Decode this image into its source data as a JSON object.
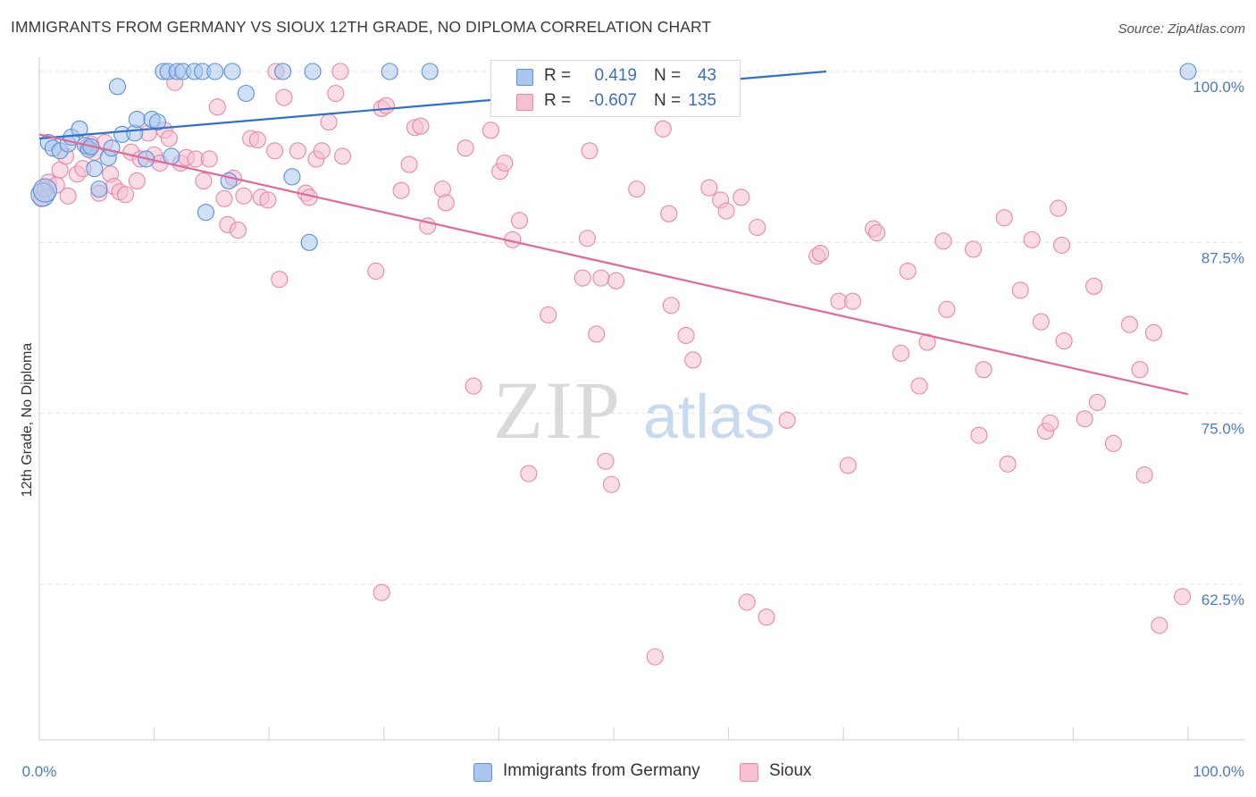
{
  "title": "IMMIGRANTS FROM GERMANY VS SIOUX 12TH GRADE, NO DIPLOMA CORRELATION CHART",
  "source": "Source: ZipAtlas.com",
  "watermark": {
    "zip": "ZIP",
    "atlas": "atlas"
  },
  "colors": {
    "blue_fill": "#a9c6ee",
    "blue_stroke": "#5b8fd6",
    "blue_line": "#2e6fcf",
    "pink_fill": "#f6c0d2",
    "pink_stroke": "#e887a7",
    "pink_line": "#e0689a",
    "tick_text": "#4a7bc4",
    "grid": "#e3e3e3"
  },
  "legend_top": [
    {
      "r_label": "R =",
      "r_value": "0.419",
      "n_label": "N =",
      "n_value": "43"
    },
    {
      "r_label": "R =",
      "r_value": "-0.607",
      "n_label": "N =",
      "n_value": "135"
    }
  ],
  "legend_bottom": [
    "Immigrants from Germany",
    "Sioux"
  ],
  "chart_data": {
    "type": "scatter",
    "title": "IMMIGRANTS FROM GERMANY VS SIOUX 12TH GRADE, NO DIPLOMA CORRELATION CHART",
    "xlabel": "",
    "ylabel": "12th Grade, No Diploma",
    "xlim": [
      0,
      100
    ],
    "ylim": [
      52.5,
      102
    ],
    "x_tick_labels": [
      "0.0%",
      "100.0%"
    ],
    "y_ticks": [
      62.5,
      75.0,
      87.5,
      100.0
    ],
    "y_tick_labels": [
      "62.5%",
      "75.0%",
      "87.5%",
      "100.0%"
    ],
    "grid": true,
    "legend_position": "top-center",
    "series": [
      {
        "name": "Immigrants from Germany",
        "color": "#a9c6ee",
        "r": 0.419,
        "n": 43,
        "trend": {
          "x": [
            0,
            68.5
          ],
          "y": [
            95.1,
            100.0
          ]
        },
        "points": [
          [
            0.3,
            91.0
          ],
          [
            0.5,
            91.3
          ],
          [
            0.8,
            94.8
          ],
          [
            1.2,
            94.4
          ],
          [
            1.8,
            94.2
          ],
          [
            2.5,
            94.7
          ],
          [
            2.8,
            95.2
          ],
          [
            3.5,
            95.8
          ],
          [
            4.0,
            94.6
          ],
          [
            4.3,
            94.3
          ],
          [
            4.5,
            94.5
          ],
          [
            4.8,
            92.9
          ],
          [
            5.2,
            91.4
          ],
          [
            6.0,
            93.7
          ],
          [
            6.3,
            94.4
          ],
          [
            6.8,
            98.9
          ],
          [
            7.2,
            95.4
          ],
          [
            8.3,
            95.5
          ],
          [
            8.5,
            96.5
          ],
          [
            9.3,
            93.6
          ],
          [
            9.8,
            96.5
          ],
          [
            10.3,
            96.3
          ],
          [
            10.8,
            100.0
          ],
          [
            11.2,
            100.0
          ],
          [
            11.5,
            93.8
          ],
          [
            12.0,
            100.0
          ],
          [
            12.5,
            100.0
          ],
          [
            13.5,
            100.0
          ],
          [
            14.2,
            100.0
          ],
          [
            14.5,
            89.7
          ],
          [
            15.3,
            100.0
          ],
          [
            16.5,
            92.0
          ],
          [
            16.8,
            100.0
          ],
          [
            18.0,
            98.4
          ],
          [
            21.2,
            100.0
          ],
          [
            22.0,
            92.3
          ],
          [
            23.5,
            87.5
          ],
          [
            23.8,
            100.0
          ],
          [
            30.5,
            100.0
          ],
          [
            34.0,
            100.0
          ],
          [
            40.5,
            100.0
          ],
          [
            48.5,
            98.2
          ],
          [
            100.0,
            100.0
          ]
        ]
      },
      {
        "name": "Sioux",
        "color": "#f6c0d2",
        "r": -0.607,
        "n": 135,
        "trend": {
          "x": [
            0,
            100
          ],
          "y": [
            95.4,
            76.4
          ]
        },
        "points": [
          [
            0.2,
            90.7
          ],
          [
            0.5,
            91.4
          ],
          [
            0.8,
            91.9
          ],
          [
            1.5,
            91.7
          ],
          [
            1.8,
            92.8
          ],
          [
            2.3,
            93.8
          ],
          [
            2.5,
            90.9
          ],
          [
            3.3,
            92.5
          ],
          [
            3.8,
            92.9
          ],
          [
            4.2,
            94.5
          ],
          [
            4.5,
            94.7
          ],
          [
            4.8,
            94.1
          ],
          [
            5.2,
            91.1
          ],
          [
            5.7,
            94.8
          ],
          [
            6.2,
            92.5
          ],
          [
            6.5,
            91.6
          ],
          [
            7.0,
            91.2
          ],
          [
            7.5,
            91.0
          ],
          [
            8.0,
            94.1
          ],
          [
            8.5,
            92.0
          ],
          [
            8.8,
            93.6
          ],
          [
            9.5,
            95.5
          ],
          [
            10.0,
            93.9
          ],
          [
            10.5,
            93.3
          ],
          [
            10.9,
            95.7
          ],
          [
            11.3,
            95.1
          ],
          [
            11.8,
            99.2
          ],
          [
            12.3,
            93.3
          ],
          [
            12.8,
            93.7
          ],
          [
            13.6,
            93.6
          ],
          [
            14.3,
            92.0
          ],
          [
            14.8,
            93.6
          ],
          [
            15.5,
            97.4
          ],
          [
            16.1,
            90.7
          ],
          [
            16.4,
            88.8
          ],
          [
            16.9,
            92.2
          ],
          [
            17.3,
            88.4
          ],
          [
            17.8,
            90.9
          ],
          [
            18.4,
            95.1
          ],
          [
            19.0,
            95.0
          ],
          [
            19.3,
            90.8
          ],
          [
            19.9,
            90.6
          ],
          [
            20.5,
            94.2
          ],
          [
            20.9,
            84.8
          ],
          [
            21.3,
            98.1
          ],
          [
            22.5,
            94.2
          ],
          [
            23.2,
            91.1
          ],
          [
            23.5,
            90.8
          ],
          [
            24.1,
            93.6
          ],
          [
            24.6,
            94.2
          ],
          [
            25.2,
            96.3
          ],
          [
            25.8,
            98.4
          ],
          [
            26.4,
            93.8
          ],
          [
            29.3,
            85.4
          ],
          [
            29.8,
            97.3
          ],
          [
            30.2,
            97.5
          ],
          [
            31.5,
            91.3
          ],
          [
            32.2,
            93.2
          ],
          [
            32.7,
            95.9
          ],
          [
            33.2,
            96.0
          ],
          [
            33.8,
            88.7
          ],
          [
            35.1,
            91.4
          ],
          [
            35.4,
            90.4
          ],
          [
            37.1,
            94.4
          ],
          [
            37.8,
            77.0
          ],
          [
            39.3,
            95.7
          ],
          [
            40.1,
            92.7
          ],
          [
            40.5,
            93.3
          ],
          [
            41.2,
            87.7
          ],
          [
            41.8,
            89.1
          ],
          [
            42.6,
            70.6
          ],
          [
            43.6,
            100.0
          ],
          [
            44.3,
            82.2
          ],
          [
            47.3,
            84.9
          ],
          [
            47.7,
            87.8
          ],
          [
            47.9,
            94.2
          ],
          [
            48.5,
            80.8
          ],
          [
            48.9,
            84.9
          ],
          [
            49.3,
            71.5
          ],
          [
            49.8,
            69.8
          ],
          [
            50.2,
            84.7
          ],
          [
            52.0,
            91.4
          ],
          [
            54.3,
            95.8
          ],
          [
            54.8,
            89.6
          ],
          [
            55.0,
            82.9
          ],
          [
            56.3,
            80.7
          ],
          [
            56.9,
            78.9
          ],
          [
            58.3,
            91.5
          ],
          [
            59.3,
            90.6
          ],
          [
            59.8,
            89.8
          ],
          [
            61.1,
            90.8
          ],
          [
            61.6,
            61.2
          ],
          [
            62.5,
            88.6
          ],
          [
            63.3,
            60.1
          ],
          [
            65.1,
            74.5
          ],
          [
            67.7,
            86.5
          ],
          [
            68.0,
            86.7
          ],
          [
            69.6,
            83.2
          ],
          [
            70.4,
            71.2
          ],
          [
            70.8,
            83.2
          ],
          [
            72.6,
            88.5
          ],
          [
            72.9,
            88.2
          ],
          [
            75.0,
            79.4
          ],
          [
            75.6,
            85.4
          ],
          [
            76.6,
            77.0
          ],
          [
            77.3,
            80.2
          ],
          [
            78.7,
            87.6
          ],
          [
            79.0,
            82.6
          ],
          [
            81.3,
            87.0
          ],
          [
            81.8,
            73.4
          ],
          [
            82.2,
            78.2
          ],
          [
            84.0,
            89.3
          ],
          [
            84.3,
            71.3
          ],
          [
            85.4,
            84.0
          ],
          [
            86.4,
            87.7
          ],
          [
            87.2,
            81.7
          ],
          [
            87.6,
            73.7
          ],
          [
            88.0,
            74.3
          ],
          [
            88.7,
            90.0
          ],
          [
            89.0,
            87.3
          ],
          [
            89.2,
            80.3
          ],
          [
            91.0,
            74.6
          ],
          [
            91.8,
            84.3
          ],
          [
            92.1,
            75.8
          ],
          [
            93.5,
            72.8
          ],
          [
            94.9,
            81.5
          ],
          [
            95.8,
            78.2
          ],
          [
            96.2,
            70.5
          ],
          [
            97.0,
            80.9
          ],
          [
            97.5,
            59.5
          ],
          [
            99.5,
            61.6
          ],
          [
            29.8,
            61.9
          ],
          [
            53.6,
            57.2
          ],
          [
            20.6,
            100.0
          ],
          [
            26.2,
            100.0
          ]
        ]
      }
    ]
  }
}
